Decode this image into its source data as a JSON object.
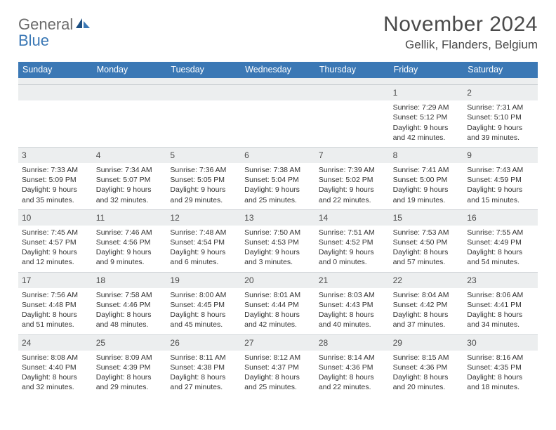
{
  "logo": {
    "general": "General",
    "blue": "Blue"
  },
  "title": "November 2024",
  "location": "Gellik, Flanders, Belgium",
  "colors": {
    "header_bg": "#3b78b5",
    "header_text": "#ffffff",
    "daynum_bg": "#eceeef",
    "body_text": "#333333",
    "title_text": "#4a4a4a",
    "border": "#cfd3d7"
  },
  "typography": {
    "title_fontsize_pt": 22,
    "location_fontsize_pt": 13,
    "dayheader_fontsize_pt": 9,
    "cell_fontsize_pt": 8
  },
  "day_names": [
    "Sunday",
    "Monday",
    "Tuesday",
    "Wednesday",
    "Thursday",
    "Friday",
    "Saturday"
  ],
  "weeks": [
    [
      {
        "n": "",
        "sr": "",
        "ss": "",
        "d1": "",
        "d2": ""
      },
      {
        "n": "",
        "sr": "",
        "ss": "",
        "d1": "",
        "d2": ""
      },
      {
        "n": "",
        "sr": "",
        "ss": "",
        "d1": "",
        "d2": ""
      },
      {
        "n": "",
        "sr": "",
        "ss": "",
        "d1": "",
        "d2": ""
      },
      {
        "n": "",
        "sr": "",
        "ss": "",
        "d1": "",
        "d2": ""
      },
      {
        "n": "1",
        "sr": "Sunrise: 7:29 AM",
        "ss": "Sunset: 5:12 PM",
        "d1": "Daylight: 9 hours",
        "d2": "and 42 minutes."
      },
      {
        "n": "2",
        "sr": "Sunrise: 7:31 AM",
        "ss": "Sunset: 5:10 PM",
        "d1": "Daylight: 9 hours",
        "d2": "and 39 minutes."
      }
    ],
    [
      {
        "n": "3",
        "sr": "Sunrise: 7:33 AM",
        "ss": "Sunset: 5:09 PM",
        "d1": "Daylight: 9 hours",
        "d2": "and 35 minutes."
      },
      {
        "n": "4",
        "sr": "Sunrise: 7:34 AM",
        "ss": "Sunset: 5:07 PM",
        "d1": "Daylight: 9 hours",
        "d2": "and 32 minutes."
      },
      {
        "n": "5",
        "sr": "Sunrise: 7:36 AM",
        "ss": "Sunset: 5:05 PM",
        "d1": "Daylight: 9 hours",
        "d2": "and 29 minutes."
      },
      {
        "n": "6",
        "sr": "Sunrise: 7:38 AM",
        "ss": "Sunset: 5:04 PM",
        "d1": "Daylight: 9 hours",
        "d2": "and 25 minutes."
      },
      {
        "n": "7",
        "sr": "Sunrise: 7:39 AM",
        "ss": "Sunset: 5:02 PM",
        "d1": "Daylight: 9 hours",
        "d2": "and 22 minutes."
      },
      {
        "n": "8",
        "sr": "Sunrise: 7:41 AM",
        "ss": "Sunset: 5:00 PM",
        "d1": "Daylight: 9 hours",
        "d2": "and 19 minutes."
      },
      {
        "n": "9",
        "sr": "Sunrise: 7:43 AM",
        "ss": "Sunset: 4:59 PM",
        "d1": "Daylight: 9 hours",
        "d2": "and 15 minutes."
      }
    ],
    [
      {
        "n": "10",
        "sr": "Sunrise: 7:45 AM",
        "ss": "Sunset: 4:57 PM",
        "d1": "Daylight: 9 hours",
        "d2": "and 12 minutes."
      },
      {
        "n": "11",
        "sr": "Sunrise: 7:46 AM",
        "ss": "Sunset: 4:56 PM",
        "d1": "Daylight: 9 hours",
        "d2": "and 9 minutes."
      },
      {
        "n": "12",
        "sr": "Sunrise: 7:48 AM",
        "ss": "Sunset: 4:54 PM",
        "d1": "Daylight: 9 hours",
        "d2": "and 6 minutes."
      },
      {
        "n": "13",
        "sr": "Sunrise: 7:50 AM",
        "ss": "Sunset: 4:53 PM",
        "d1": "Daylight: 9 hours",
        "d2": "and 3 minutes."
      },
      {
        "n": "14",
        "sr": "Sunrise: 7:51 AM",
        "ss": "Sunset: 4:52 PM",
        "d1": "Daylight: 9 hours",
        "d2": "and 0 minutes."
      },
      {
        "n": "15",
        "sr": "Sunrise: 7:53 AM",
        "ss": "Sunset: 4:50 PM",
        "d1": "Daylight: 8 hours",
        "d2": "and 57 minutes."
      },
      {
        "n": "16",
        "sr": "Sunrise: 7:55 AM",
        "ss": "Sunset: 4:49 PM",
        "d1": "Daylight: 8 hours",
        "d2": "and 54 minutes."
      }
    ],
    [
      {
        "n": "17",
        "sr": "Sunrise: 7:56 AM",
        "ss": "Sunset: 4:48 PM",
        "d1": "Daylight: 8 hours",
        "d2": "and 51 minutes."
      },
      {
        "n": "18",
        "sr": "Sunrise: 7:58 AM",
        "ss": "Sunset: 4:46 PM",
        "d1": "Daylight: 8 hours",
        "d2": "and 48 minutes."
      },
      {
        "n": "19",
        "sr": "Sunrise: 8:00 AM",
        "ss": "Sunset: 4:45 PM",
        "d1": "Daylight: 8 hours",
        "d2": "and 45 minutes."
      },
      {
        "n": "20",
        "sr": "Sunrise: 8:01 AM",
        "ss": "Sunset: 4:44 PM",
        "d1": "Daylight: 8 hours",
        "d2": "and 42 minutes."
      },
      {
        "n": "21",
        "sr": "Sunrise: 8:03 AM",
        "ss": "Sunset: 4:43 PM",
        "d1": "Daylight: 8 hours",
        "d2": "and 40 minutes."
      },
      {
        "n": "22",
        "sr": "Sunrise: 8:04 AM",
        "ss": "Sunset: 4:42 PM",
        "d1": "Daylight: 8 hours",
        "d2": "and 37 minutes."
      },
      {
        "n": "23",
        "sr": "Sunrise: 8:06 AM",
        "ss": "Sunset: 4:41 PM",
        "d1": "Daylight: 8 hours",
        "d2": "and 34 minutes."
      }
    ],
    [
      {
        "n": "24",
        "sr": "Sunrise: 8:08 AM",
        "ss": "Sunset: 4:40 PM",
        "d1": "Daylight: 8 hours",
        "d2": "and 32 minutes."
      },
      {
        "n": "25",
        "sr": "Sunrise: 8:09 AM",
        "ss": "Sunset: 4:39 PM",
        "d1": "Daylight: 8 hours",
        "d2": "and 29 minutes."
      },
      {
        "n": "26",
        "sr": "Sunrise: 8:11 AM",
        "ss": "Sunset: 4:38 PM",
        "d1": "Daylight: 8 hours",
        "d2": "and 27 minutes."
      },
      {
        "n": "27",
        "sr": "Sunrise: 8:12 AM",
        "ss": "Sunset: 4:37 PM",
        "d1": "Daylight: 8 hours",
        "d2": "and 25 minutes."
      },
      {
        "n": "28",
        "sr": "Sunrise: 8:14 AM",
        "ss": "Sunset: 4:36 PM",
        "d1": "Daylight: 8 hours",
        "d2": "and 22 minutes."
      },
      {
        "n": "29",
        "sr": "Sunrise: 8:15 AM",
        "ss": "Sunset: 4:36 PM",
        "d1": "Daylight: 8 hours",
        "d2": "and 20 minutes."
      },
      {
        "n": "30",
        "sr": "Sunrise: 8:16 AM",
        "ss": "Sunset: 4:35 PM",
        "d1": "Daylight: 8 hours",
        "d2": "and 18 minutes."
      }
    ]
  ]
}
